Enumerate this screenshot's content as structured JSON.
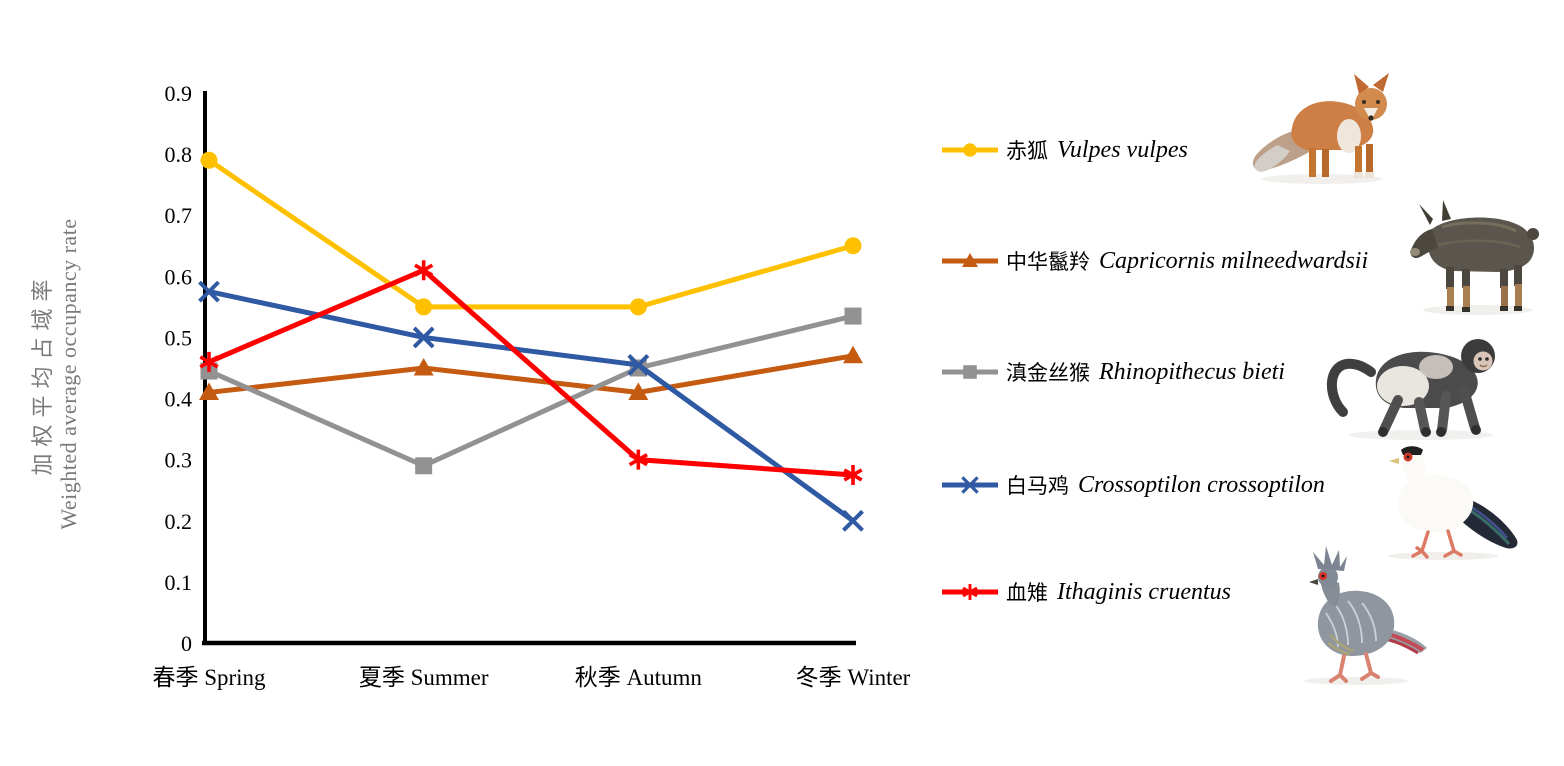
{
  "figure": {
    "background": "#FFFFFF"
  },
  "chart_data": {
    "type": "line",
    "title": "",
    "categories": [
      "春季 Spring",
      "夏季 Summer",
      "秋季 Autumn",
      "冬季 Winter"
    ],
    "xlabel": "",
    "ylabel_zh": "加权平均占域率",
    "ylabel_en": "Weighted average occupancy rate",
    "ylim": [
      0,
      0.9
    ],
    "yticks": [
      0,
      0.1,
      0.2,
      0.3,
      0.4,
      0.5,
      0.6,
      0.7,
      0.8,
      0.9
    ],
    "grid": false,
    "legend_position": "right",
    "axis_color": "#000000",
    "ylabel_color": "#7A7A7A",
    "series": [
      {
        "name_zh": "赤狐",
        "name_latin": "Vulpes vulpes",
        "color": "#FFC000",
        "marker": "circle",
        "values": [
          0.79,
          0.55,
          0.55,
          0.65
        ]
      },
      {
        "name_zh": "中华鬣羚",
        "name_latin": "Capricornis milneedwardsii",
        "color": "#C55A11",
        "marker": "triangle",
        "values": [
          0.41,
          0.45,
          0.41,
          0.47
        ]
      },
      {
        "name_zh": "滇金丝猴",
        "name_latin": "Rhinopithecus bieti",
        "color": "#929292",
        "marker": "square",
        "values": [
          0.445,
          0.29,
          0.45,
          0.535
        ]
      },
      {
        "name_zh": "白马鸡",
        "name_latin": "Crossoptilon crossoptilon",
        "color": "#3059A4",
        "marker": "x",
        "values": [
          0.575,
          0.5,
          0.455,
          0.2
        ]
      },
      {
        "name_zh": "血雉",
        "name_latin": "Ithaginis cruentus",
        "color": "#FF0000",
        "marker": "asterisk",
        "values": [
          0.46,
          0.61,
          0.3,
          0.275
        ]
      }
    ],
    "photos": [
      "red fox",
      "Chinese serow",
      "black snub-nosed monkey",
      "white eared pheasant",
      "blood pheasant"
    ]
  }
}
